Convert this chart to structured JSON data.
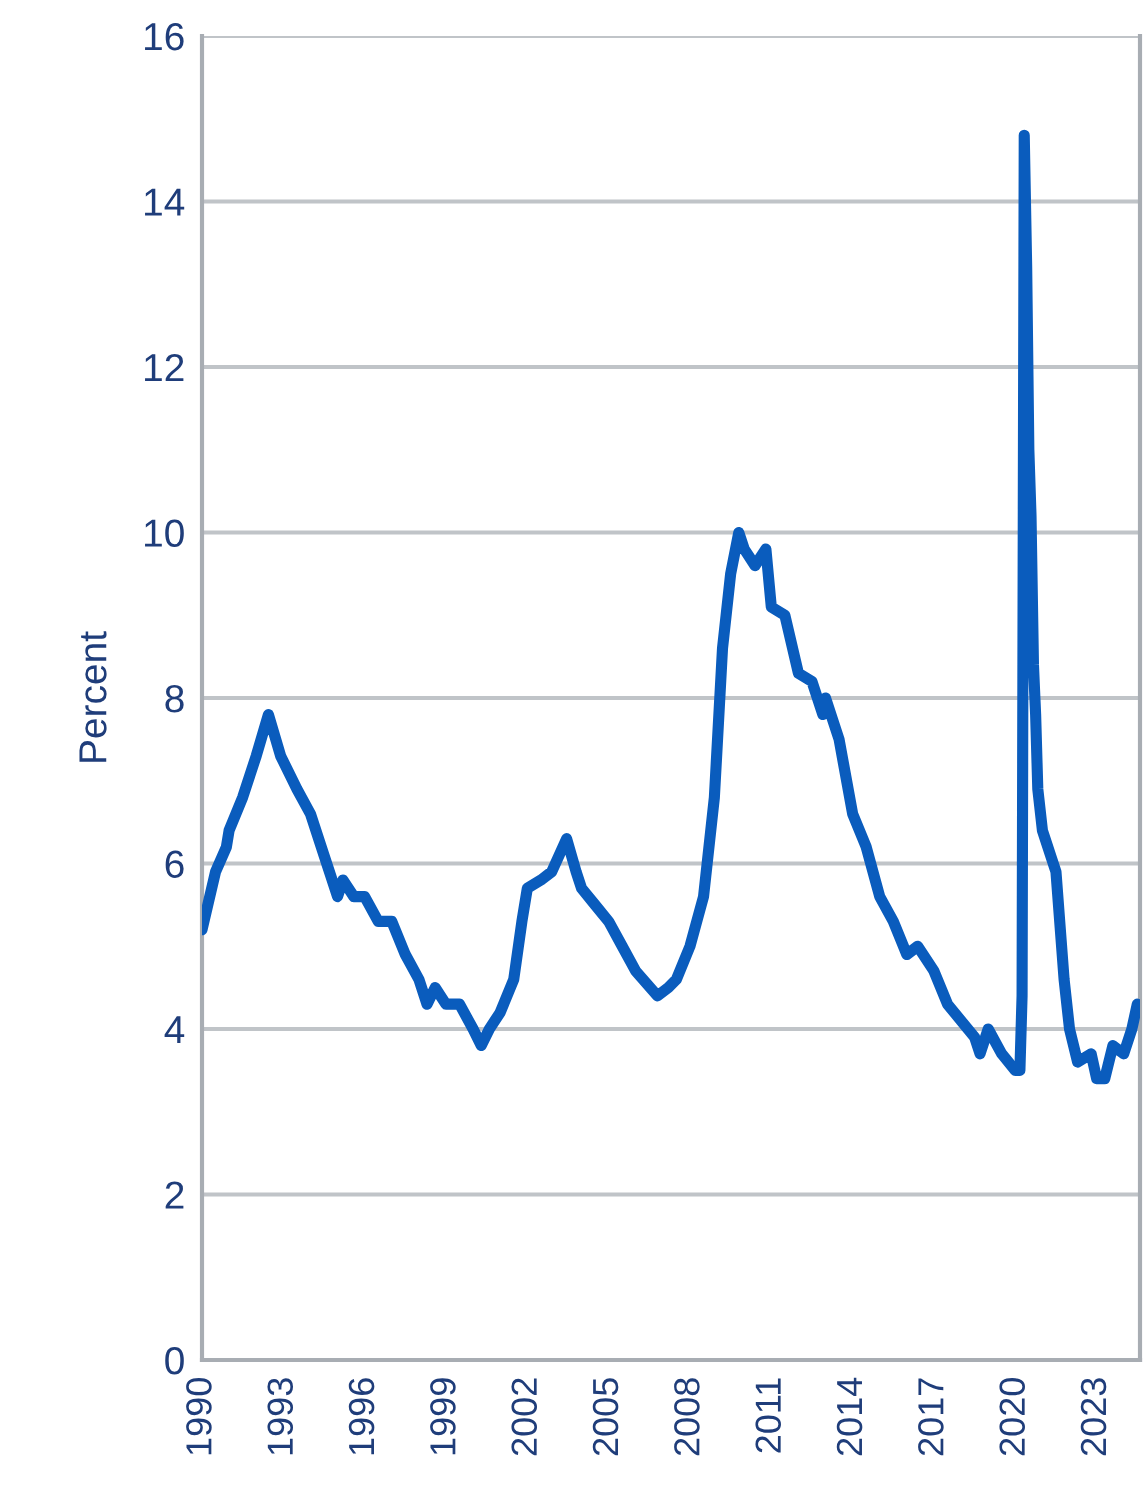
{
  "chart_data": {
    "type": "line",
    "ylabel": "Percent",
    "grid": "y",
    "legend": false,
    "marker": "none",
    "line_style": "solid",
    "xlim": [
      1990,
      2024.6
    ],
    "xticks": [
      1990,
      1993,
      1996,
      1999,
      2002,
      2005,
      2008,
      2011,
      2014,
      2017,
      2020,
      2023
    ],
    "ylim": [
      0,
      16
    ],
    "yticks": [
      0,
      2,
      4,
      6,
      8,
      10,
      12,
      14,
      16
    ],
    "series": [
      {
        "color": "#0a5cbd",
        "x": [
          1990.0,
          1990.5,
          1990.9,
          1991.0,
          1991.5,
          1992.0,
          1992.45,
          1992.9,
          1993.5,
          1994.0,
          1994.5,
          1995.0,
          1995.2,
          1995.6,
          1996.0,
          1996.5,
          1997.0,
          1997.5,
          1998.0,
          1998.3,
          1998.6,
          1999.0,
          1999.5,
          2000.0,
          2000.3,
          2000.6,
          2001.0,
          2001.5,
          2001.8,
          2002.0,
          2002.5,
          2002.9,
          2003.45,
          2003.8,
          2004.0,
          2004.5,
          2005.0,
          2005.5,
          2006.0,
          2006.8,
          2007.2,
          2007.5,
          2008.0,
          2008.5,
          2008.9,
          2009.2,
          2009.5,
          2009.8,
          2010.0,
          2010.4,
          2010.8,
          2011.0,
          2011.5,
          2012.0,
          2012.5,
          2012.9,
          2013.0,
          2013.5,
          2014.0,
          2014.5,
          2015.0,
          2015.5,
          2016.0,
          2016.4,
          2016.8,
          2017.0,
          2017.5,
          2018.0,
          2018.5,
          2018.7,
          2019.0,
          2019.5,
          2020.0,
          2020.17,
          2020.25,
          2020.33,
          2020.42,
          2020.5,
          2020.58,
          2020.67,
          2020.75,
          2020.83,
          2021.0,
          2021.5,
          2021.8,
          2022.0,
          2022.3,
          2022.8,
          2023.0,
          2023.3,
          2023.6,
          2024.0,
          2024.3,
          2024.5
        ],
        "values": [
          5.2,
          5.9,
          6.2,
          6.4,
          6.8,
          7.3,
          7.8,
          7.3,
          6.9,
          6.6,
          6.1,
          5.6,
          5.8,
          5.6,
          5.6,
          5.3,
          5.3,
          4.9,
          4.6,
          4.3,
          4.5,
          4.3,
          4.3,
          4.0,
          3.8,
          4.0,
          4.2,
          4.6,
          5.3,
          5.7,
          5.8,
          5.9,
          6.3,
          5.9,
          5.7,
          5.5,
          5.3,
          5.0,
          4.7,
          4.4,
          4.5,
          4.6,
          5.0,
          5.6,
          6.8,
          8.6,
          9.5,
          10.0,
          9.8,
          9.6,
          9.8,
          9.1,
          9.0,
          8.3,
          8.2,
          7.8,
          8.0,
          7.5,
          6.6,
          6.2,
          5.6,
          5.3,
          4.9,
          5.0,
          4.8,
          4.7,
          4.3,
          4.1,
          3.9,
          3.7,
          4.0,
          3.7,
          3.5,
          3.5,
          4.4,
          14.8,
          13.2,
          11.0,
          10.2,
          8.4,
          7.8,
          6.9,
          6.4,
          5.9,
          4.6,
          4.0,
          3.6,
          3.7,
          3.4,
          3.4,
          3.8,
          3.7,
          4.0,
          4.3
        ]
      }
    ]
  }
}
